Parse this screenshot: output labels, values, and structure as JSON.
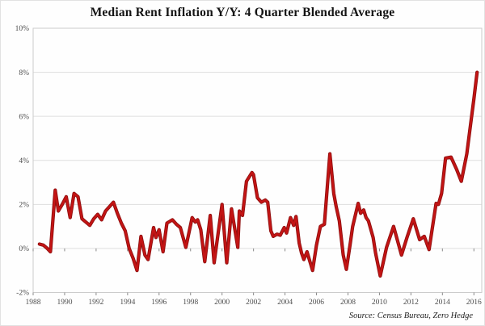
{
  "chart_data": {
    "type": "line",
    "title": "Median Rent Inflation Y/Y: 4 Quarter Blended Average",
    "source_note": "Source: Census Bureau, Zero Hedge",
    "xlabel": "",
    "ylabel": "",
    "xlim": [
      1988,
      2016.5
    ],
    "ylim": [
      -2,
      10
    ],
    "x_ticks": [
      1988,
      1990,
      1992,
      1994,
      1996,
      1998,
      2000,
      2002,
      2004,
      2006,
      2008,
      2010,
      2012,
      2014,
      2016
    ],
    "y_ticks": [
      10,
      8,
      6,
      4,
      2,
      0,
      -2
    ],
    "y_tick_suffix": "%",
    "grid": "horizontal",
    "legend": "none",
    "colors": {
      "line": "#c41414",
      "line_edge": "#8f1010",
      "grid": "#dedede",
      "plot_border": "#cccccc",
      "tick": "#8a8a8a",
      "axis_text": "#4d4d4d",
      "title_text": "#141414"
    },
    "series": [
      {
        "name": "Median Rent Inflation Y/Y (4 Quarter Blended Average)",
        "points": [
          [
            1988.4,
            0.2
          ],
          [
            1988.65,
            0.15
          ],
          [
            1988.9,
            0.0
          ],
          [
            1989.1,
            -0.15
          ],
          [
            1989.4,
            2.65
          ],
          [
            1989.6,
            1.7
          ],
          [
            1989.85,
            2.0
          ],
          [
            1990.1,
            2.35
          ],
          [
            1990.35,
            1.4
          ],
          [
            1990.6,
            2.5
          ],
          [
            1990.85,
            2.35
          ],
          [
            1991.1,
            1.35
          ],
          [
            1991.35,
            1.2
          ],
          [
            1991.6,
            1.05
          ],
          [
            1991.85,
            1.35
          ],
          [
            1992.1,
            1.55
          ],
          [
            1992.35,
            1.3
          ],
          [
            1992.6,
            1.7
          ],
          [
            1992.85,
            1.9
          ],
          [
            1993.1,
            2.1
          ],
          [
            1993.35,
            1.6
          ],
          [
            1993.6,
            1.15
          ],
          [
            1993.85,
            0.8
          ],
          [
            1994.1,
            0.0
          ],
          [
            1994.35,
            -0.45
          ],
          [
            1994.6,
            -1.0
          ],
          [
            1994.85,
            0.55
          ],
          [
            1995.1,
            -0.3
          ],
          [
            1995.3,
            -0.5
          ],
          [
            1995.65,
            0.95
          ],
          [
            1995.8,
            0.5
          ],
          [
            1996.0,
            0.85
          ],
          [
            1996.25,
            -0.15
          ],
          [
            1996.5,
            1.15
          ],
          [
            1996.85,
            1.3
          ],
          [
            1997.1,
            1.1
          ],
          [
            1997.35,
            0.95
          ],
          [
            1997.7,
            0.05
          ],
          [
            1998.1,
            1.4
          ],
          [
            1998.3,
            1.2
          ],
          [
            1998.45,
            1.3
          ],
          [
            1998.65,
            0.85
          ],
          [
            1998.9,
            -0.6
          ],
          [
            1999.25,
            1.5
          ],
          [
            1999.5,
            -0.65
          ],
          [
            2000.0,
            2.0
          ],
          [
            2000.3,
            -0.65
          ],
          [
            2000.6,
            1.8
          ],
          [
            2001.0,
            0.05
          ],
          [
            2001.1,
            1.7
          ],
          [
            2001.3,
            1.5
          ],
          [
            2001.55,
            3.05
          ],
          [
            2001.9,
            3.45
          ],
          [
            2002.0,
            3.35
          ],
          [
            2002.25,
            2.3
          ],
          [
            2002.5,
            2.1
          ],
          [
            2002.75,
            2.2
          ],
          [
            2002.9,
            2.1
          ],
          [
            2003.1,
            0.8
          ],
          [
            2003.25,
            0.55
          ],
          [
            2003.5,
            0.65
          ],
          [
            2003.7,
            0.6
          ],
          [
            2003.95,
            0.95
          ],
          [
            2004.1,
            0.7
          ],
          [
            2004.35,
            1.4
          ],
          [
            2004.55,
            1.05
          ],
          [
            2004.7,
            1.45
          ],
          [
            2004.9,
            0.25
          ],
          [
            2005.05,
            -0.2
          ],
          [
            2005.2,
            -0.5
          ],
          [
            2005.4,
            -0.15
          ],
          [
            2005.75,
            -1.0
          ],
          [
            2006.0,
            0.15
          ],
          [
            2006.25,
            1.0
          ],
          [
            2006.5,
            1.1
          ],
          [
            2006.85,
            4.3
          ],
          [
            2007.1,
            2.5
          ],
          [
            2007.25,
            1.9
          ],
          [
            2007.45,
            1.25
          ],
          [
            2007.7,
            -0.3
          ],
          [
            2007.9,
            -0.95
          ],
          [
            2008.15,
            0.25
          ],
          [
            2008.3,
            1.0
          ],
          [
            2008.65,
            2.05
          ],
          [
            2008.8,
            1.6
          ],
          [
            2009.0,
            1.75
          ],
          [
            2009.15,
            1.4
          ],
          [
            2009.3,
            1.25
          ],
          [
            2009.6,
            0.5
          ],
          [
            2009.75,
            -0.2
          ],
          [
            2010.05,
            -1.25
          ],
          [
            2010.45,
            0.05
          ],
          [
            2010.9,
            1.0
          ],
          [
            2011.4,
            -0.3
          ],
          [
            2011.75,
            0.5
          ],
          [
            2012.15,
            1.35
          ],
          [
            2012.55,
            0.4
          ],
          [
            2012.85,
            0.55
          ],
          [
            2013.15,
            -0.05
          ],
          [
            2013.6,
            2.05
          ],
          [
            2013.75,
            2.0
          ],
          [
            2013.95,
            2.5
          ],
          [
            2014.2,
            4.1
          ],
          [
            2014.55,
            4.15
          ],
          [
            2014.9,
            3.6
          ],
          [
            2015.2,
            3.05
          ],
          [
            2015.55,
            4.3
          ],
          [
            2015.8,
            5.7
          ],
          [
            2016.0,
            6.8
          ],
          [
            2016.2,
            8.0
          ]
        ]
      }
    ]
  }
}
